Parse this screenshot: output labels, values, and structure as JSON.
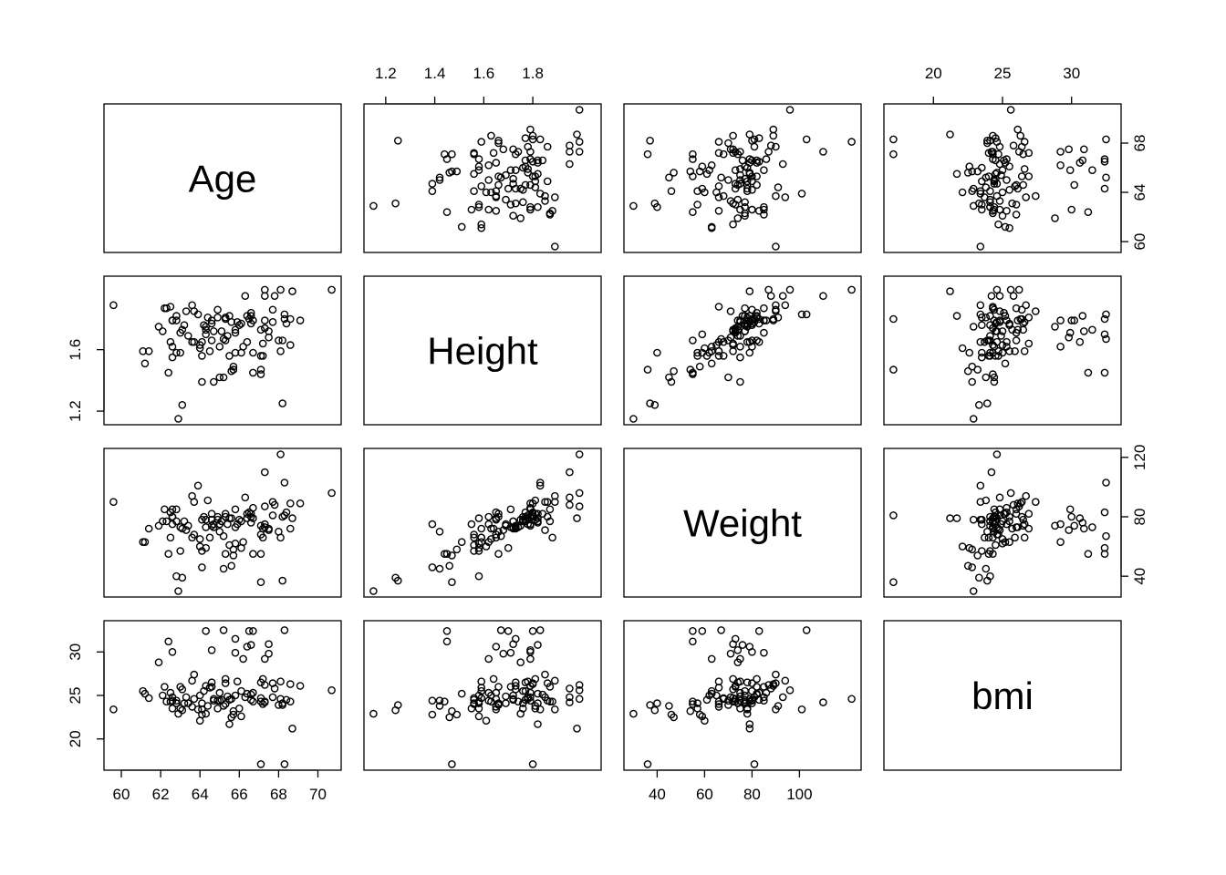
{
  "chart_data": {
    "type": "scatter-matrix",
    "variables": [
      "Age",
      "Height",
      "Weight",
      "bmi"
    ],
    "ranges": {
      "Age": [
        59.6,
        70.7
      ],
      "Height": [
        1.15,
        2.04
      ],
      "Weight": [
        30,
        122
      ],
      "bmi": [
        17.1,
        32.9
      ]
    },
    "ticks": {
      "Age": [
        60,
        62,
        64,
        66,
        68,
        70
      ],
      "Age_right": [
        60,
        64,
        68
      ],
      "Height": [
        1.2,
        1.4,
        1.6,
        1.8
      ],
      "Height_left": [
        1.2,
        1.6
      ],
      "Weight": [
        40,
        60,
        80,
        100
      ],
      "Weight_right": [
        40,
        80,
        120
      ],
      "bmi": [
        20,
        25,
        30
      ]
    },
    "points": [
      [
        59.6,
        1.89,
        90,
        23.4
      ],
      [
        68.1,
        1.99,
        122,
        24.6
      ],
      [
        68.3,
        1.83,
        103,
        32.5
      ],
      [
        63.9,
        1.83,
        101,
        23.4
      ],
      [
        62.8,
        1.79,
        85,
        24.4
      ],
      [
        65.0,
        1.62,
        75,
        25.3
      ],
      [
        67.2,
        1.64,
        72,
        26.9
      ],
      [
        70.7,
        1.99,
        96,
        25.6
      ],
      [
        69.1,
        1.79,
        89,
        26.1
      ],
      [
        66.3,
        1.95,
        93,
        24.8
      ],
      [
        67.3,
        1.95,
        110,
        24.2
      ],
      [
        61.9,
        1.75,
        74,
        28.8
      ],
      [
        62.3,
        1.87,
        77,
        24.3
      ],
      [
        63.0,
        1.58,
        57,
        23.5
      ],
      [
        64.1,
        1.65,
        78,
        23.4
      ],
      [
        65.4,
        1.69,
        75,
        24.9
      ],
      [
        64.6,
        1.77,
        78,
        26.5
      ],
      [
        66.6,
        1.84,
        82,
        25.1
      ],
      [
        62.2,
        1.87,
        85,
        26.0
      ],
      [
        61.1,
        1.59,
        63,
        25.5
      ],
      [
        61.2,
        1.51,
        63,
        25.2
      ],
      [
        62.6,
        1.62,
        80,
        24.4
      ],
      [
        62.5,
        1.65,
        83,
        25.3
      ],
      [
        66.5,
        1.8,
        83,
        32.4
      ],
      [
        67.3,
        1.74,
        73,
        24.3
      ],
      [
        63.3,
        1.85,
        71,
        24.8
      ],
      [
        65.8,
        1.73,
        73,
        31.5
      ],
      [
        67.1,
        1.56,
        68,
        24.7
      ],
      [
        68.1,
        1.59,
        66,
        26.6
      ],
      [
        64.5,
        1.59,
        66,
        25.9
      ],
      [
        68.6,
        1.63,
        72,
        24.3
      ],
      [
        66.0,
        1.76,
        78,
        23.5
      ],
      [
        65.2,
        1.42,
        45,
        23.8
      ],
      [
        64.1,
        1.39,
        46,
        22.8
      ],
      [
        62.4,
        1.45,
        55,
        31.2
      ],
      [
        63.7,
        1.65,
        68,
        24.6
      ],
      [
        65.5,
        1.56,
        61,
        24.5
      ],
      [
        66.7,
        1.58,
        79,
        24.3
      ],
      [
        68.4,
        1.77,
        83,
        24.5
      ],
      [
        64.9,
        1.81,
        78,
        23.5
      ],
      [
        68.6,
        1.8,
        89,
        26.3
      ],
      [
        66.7,
        1.79,
        86,
        25.3
      ],
      [
        64.9,
        1.86,
        80,
        24.4
      ],
      [
        67.8,
        1.95,
        88,
        25.8
      ],
      [
        66.6,
        1.82,
        76,
        30.8
      ],
      [
        67.3,
        1.99,
        87,
        26.2
      ],
      [
        64.2,
        1.76,
        80,
        25.5
      ],
      [
        65.6,
        1.78,
        79,
        24.6
      ],
      [
        66.1,
        1.77,
        77,
        25.5
      ],
      [
        65.3,
        1.81,
        82,
        26.9
      ],
      [
        67.5,
        1.72,
        72,
        30.9
      ],
      [
        64.6,
        1.66,
        82,
        26.0
      ],
      [
        63.2,
        1.76,
        77,
        24.1
      ],
      [
        62.6,
        1.79,
        80,
        30.0
      ],
      [
        63.6,
        1.89,
        94,
        26.7
      ],
      [
        62.6,
        1.79,
        85,
        24.8
      ],
      [
        66.4,
        1.65,
        79,
        30.6
      ],
      [
        63.7,
        1.85,
        90,
        27.4
      ],
      [
        63.0,
        1.71,
        73,
        26.0
      ],
      [
        63.4,
        1.69,
        74,
        24.1
      ],
      [
        66.7,
        1.45,
        55,
        32.4
      ],
      [
        65.8,
        1.71,
        85,
        29.9
      ],
      [
        67.1,
        1.44,
        55,
        24.3
      ],
      [
        62.8,
        1.82,
        77,
        24.1
      ],
      [
        65.0,
        1.42,
        70,
        24.4
      ],
      [
        65.5,
        1.82,
        79,
        21.7
      ],
      [
        63.6,
        1.65,
        66,
        23.7
      ],
      [
        62.1,
        1.72,
        77,
        25.0
      ],
      [
        61.4,
        1.59,
        72,
        24.7
      ],
      [
        67.5,
        1.68,
        71,
        29.8
      ],
      [
        63.1,
        1.73,
        72,
        25.7
      ],
      [
        65.3,
        1.8,
        80,
        26.4
      ],
      [
        64.3,
        1.75,
        78,
        22.9
      ],
      [
        65.1,
        1.72,
        77,
        24.5
      ],
      [
        67.3,
        1.79,
        75,
        29.2
      ],
      [
        67.7,
        1.86,
        90,
        26.4
      ],
      [
        64.0,
        1.63,
        65,
        25.0
      ],
      [
        65.3,
        1.66,
        55,
        24.0
      ],
      [
        65.2,
        1.67,
        67,
        32.5
      ],
      [
        63.1,
        1.24,
        39,
        23.3
      ],
      [
        68.7,
        1.98,
        79,
        21.2
      ],
      [
        62.6,
        1.55,
        75,
        23.5
      ],
      [
        64.7,
        1.39,
        75,
        24.4
      ],
      [
        64.4,
        1.81,
        91,
        23.8
      ],
      [
        62.8,
        1.58,
        40,
        24.1
      ],
      [
        68.2,
        1.66,
        80,
        24.1
      ],
      [
        64.6,
        1.79,
        74,
        30.2
      ],
      [
        66.4,
        1.82,
        82,
        25.2
      ],
      [
        64.0,
        1.61,
        60,
        22.1
      ],
      [
        62.5,
        1.88,
        66,
        24.3
      ],
      [
        64.3,
        1.7,
        59,
        32.4
      ],
      [
        66.6,
        1.77,
        80,
        24.5
      ],
      [
        67.1,
        1.73,
        74,
        26.5
      ],
      [
        68.3,
        1.8,
        81,
        17.1
      ],
      [
        65.7,
        1.49,
        58,
        22.8
      ],
      [
        66.2,
        1.62,
        63,
        29.2
      ],
      [
        67.2,
        1.56,
        66,
        24.0
      ],
      [
        64.1,
        1.56,
        57,
        24.1
      ],
      [
        64.3,
        1.73,
        73,
        26.1
      ],
      [
        67.7,
        1.78,
        81,
        24.8
      ],
      [
        65.8,
        1.58,
        62,
        25.0
      ],
      [
        68.0,
        1.66,
        70,
        23.9
      ],
      [
        65.6,
        1.46,
        47,
        22.5
      ],
      [
        62.9,
        1.15,
        30,
        22.9
      ],
      [
        65.7,
        1.47,
        54,
        23.2
      ],
      [
        66.1,
        1.58,
        59,
        22.6
      ],
      [
        64.7,
        1.72,
        73,
        24.6
      ],
      [
        65.9,
        1.78,
        75,
        26.6
      ],
      [
        68.2,
        1.25,
        37,
        23.9
      ],
      [
        67.1,
        1.47,
        36,
        17.1
      ]
    ]
  }
}
